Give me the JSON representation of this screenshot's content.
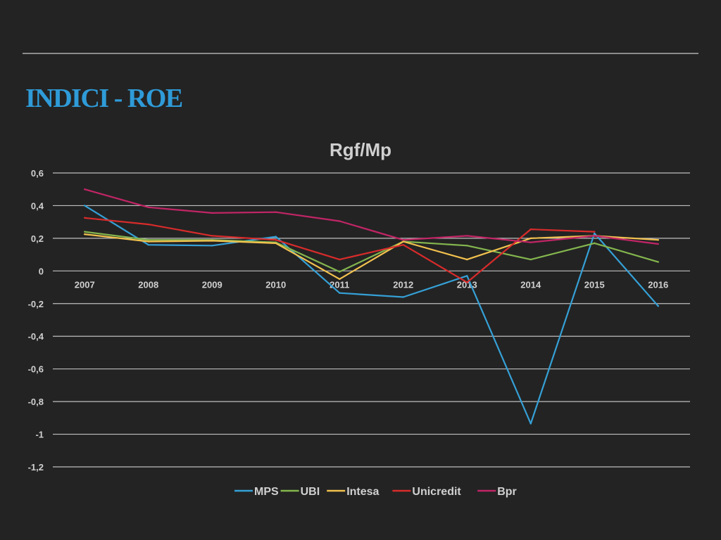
{
  "slide": {
    "title": "INDICI - ROE"
  },
  "colors": {
    "background": "#232323",
    "title": "#2f9bd8",
    "axis_text": "#d0d0d0",
    "gridline": "#bfbfbf"
  },
  "chart_data": {
    "type": "line",
    "title": "Rgf/Mp",
    "xlabel": "",
    "ylabel": "",
    "categories": [
      "2007",
      "2008",
      "2009",
      "2010",
      "2011",
      "2012",
      "2013",
      "2014",
      "2015",
      "2016"
    ],
    "ylim": [
      -1.2,
      0.6
    ],
    "yticks": [
      0.6,
      0.4,
      0.2,
      0,
      -0.2,
      -0.4,
      -0.6,
      -0.8,
      -1,
      -1.2
    ],
    "ytick_labels": [
      "0,6",
      "0,4",
      "0,2",
      "0",
      "-0,2",
      "-0,4",
      "-0,6",
      "-0,8",
      "-1",
      "-1,2"
    ],
    "grid": true,
    "x_labels_at_zero": true,
    "legend": "bottom",
    "series": [
      {
        "name": "MPS",
        "color": "#35a0d6",
        "values": [
          0.4,
          0.16,
          0.155,
          0.21,
          -0.135,
          -0.16,
          -0.03,
          -0.935,
          0.23,
          -0.215
        ]
      },
      {
        "name": "UBI",
        "color": "#84b64e",
        "values": [
          0.24,
          0.19,
          0.19,
          0.175,
          -0.005,
          0.18,
          0.155,
          0.07,
          0.17,
          0.055
        ]
      },
      {
        "name": "Intesa",
        "color": "#f2c14e",
        "values": [
          0.225,
          0.18,
          0.185,
          0.17,
          -0.05,
          0.18,
          0.07,
          0.2,
          0.215,
          0.19
        ]
      },
      {
        "name": "Unicredit",
        "color": "#d92b2b",
        "values": [
          0.325,
          0.285,
          0.215,
          0.19,
          0.07,
          0.16,
          -0.07,
          0.255,
          0.24,
          null
        ]
      },
      {
        "name": "Bpr",
        "color": "#c22566",
        "values": [
          0.5,
          0.39,
          0.355,
          0.36,
          0.305,
          0.19,
          0.215,
          0.175,
          0.215,
          0.165
        ]
      }
    ]
  }
}
